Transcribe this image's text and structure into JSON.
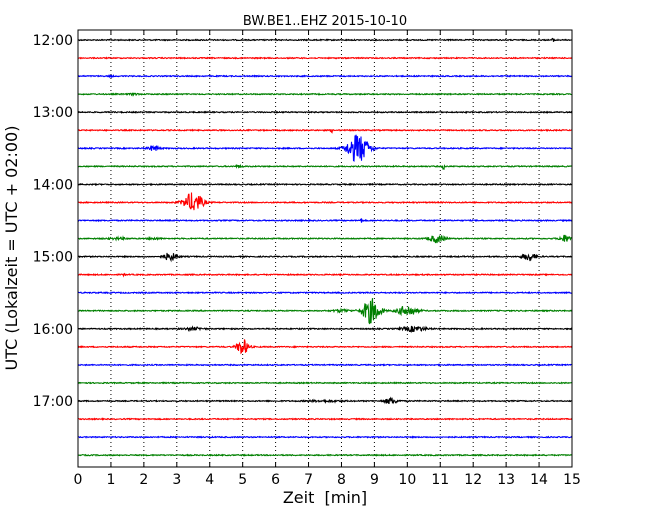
{
  "chart_data": {
    "type": "line",
    "title": "BW.BE1..EHZ 2015-10-10",
    "xlabel": "Zeit  [min]",
    "ylabel": "UTC (Lokalzeit = UTC + 02:00)",
    "xlim": [
      0,
      15
    ],
    "x_ticks": [
      "0",
      "1",
      "2",
      "3",
      "4",
      "5",
      "6",
      "7",
      "8",
      "9",
      "10",
      "11",
      "12",
      "13",
      "14",
      "15"
    ],
    "y_ticks": [
      {
        "label": "12:00",
        "row": 0
      },
      {
        "label": "13:00",
        "row": 4
      },
      {
        "label": "14:00",
        "row": 8
      },
      {
        "label": "15:00",
        "row": 12
      },
      {
        "label": "16:00",
        "row": 16
      },
      {
        "label": "17:00",
        "row": 20
      }
    ],
    "grid": {
      "x": true,
      "y": false
    },
    "row_colors": [
      "#000000",
      "#ff0000",
      "#0000ff",
      "#008000"
    ],
    "rows": [
      {
        "time": "12:00",
        "events": [
          {
            "t": 14.45,
            "amp": 0.15,
            "dur": 0.15
          }
        ]
      },
      {
        "time": "12:15",
        "events": []
      },
      {
        "time": "12:30",
        "events": [
          {
            "t": 1.0,
            "amp": 0.1,
            "dur": 0.1
          }
        ]
      },
      {
        "time": "12:45",
        "events": [
          {
            "t": 1.7,
            "amp": 0.12,
            "dur": 0.2
          }
        ]
      },
      {
        "time": "13:00",
        "events": []
      },
      {
        "time": "13:15",
        "events": [
          {
            "t": 7.7,
            "amp": 0.25,
            "dur": 0.05
          }
        ]
      },
      {
        "time": "13:30",
        "events": [
          {
            "t": 8.5,
            "amp": 1.6,
            "dur": 0.55
          },
          {
            "t": 2.3,
            "amp": 0.3,
            "dur": 0.3
          }
        ]
      },
      {
        "time": "13:45",
        "events": [
          {
            "t": 11.1,
            "amp": 0.3,
            "dur": 0.08
          },
          {
            "t": 4.9,
            "amp": 0.1,
            "dur": 0.2
          }
        ]
      },
      {
        "time": "14:00",
        "events": []
      },
      {
        "time": "14:15",
        "events": [
          {
            "t": 3.5,
            "amp": 1.1,
            "dur": 0.5
          }
        ]
      },
      {
        "time": "14:30",
        "events": [
          {
            "t": 8.6,
            "amp": 0.25,
            "dur": 0.05
          }
        ]
      },
      {
        "time": "14:45",
        "events": [
          {
            "t": 10.9,
            "amp": 0.45,
            "dur": 0.4
          },
          {
            "t": 14.8,
            "amp": 0.4,
            "dur": 0.3
          },
          {
            "t": 1.2,
            "amp": 0.1,
            "dur": 0.5
          },
          {
            "t": 2.3,
            "amp": 0.1,
            "dur": 0.3
          }
        ]
      },
      {
        "time": "15:00",
        "events": [
          {
            "t": 2.8,
            "amp": 0.45,
            "dur": 0.35
          },
          {
            "t": 13.7,
            "amp": 0.45,
            "dur": 0.35
          }
        ]
      },
      {
        "time": "15:15",
        "events": [
          {
            "t": 1.4,
            "amp": 0.2,
            "dur": 0.05
          }
        ]
      },
      {
        "time": "15:30",
        "events": []
      },
      {
        "time": "15:45",
        "events": [
          {
            "t": 8.9,
            "amp": 1.4,
            "dur": 0.45
          },
          {
            "t": 10.0,
            "amp": 0.6,
            "dur": 0.5
          },
          {
            "t": 8.0,
            "amp": 0.15,
            "dur": 0.4
          }
        ]
      },
      {
        "time": "16:00",
        "events": [
          {
            "t": 3.5,
            "amp": 0.15,
            "dur": 0.5
          },
          {
            "t": 10.2,
            "amp": 0.3,
            "dur": 0.6
          }
        ]
      },
      {
        "time": "16:15",
        "events": [
          {
            "t": 5.0,
            "amp": 0.9,
            "dur": 0.3
          }
        ]
      },
      {
        "time": "16:30",
        "events": []
      },
      {
        "time": "16:45",
        "events": []
      },
      {
        "time": "17:00",
        "events": [
          {
            "t": 9.5,
            "amp": 0.35,
            "dur": 0.35
          },
          {
            "t": 7.5,
            "amp": 0.08,
            "dur": 1.0
          }
        ]
      },
      {
        "time": "17:15",
        "events": []
      },
      {
        "time": "17:30",
        "events": []
      },
      {
        "time": "17:45",
        "events": []
      }
    ]
  }
}
